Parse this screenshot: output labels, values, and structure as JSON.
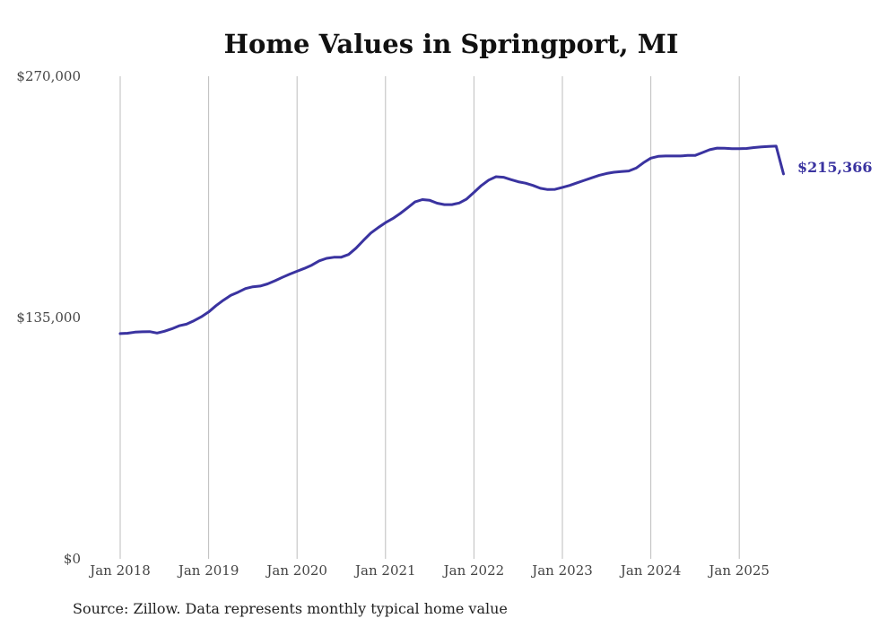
{
  "chart_data": {
    "type": "line",
    "title": "Home Values in Springport, MI",
    "source": "Source: Zillow. Data represents monthly typical home value",
    "xlabel": "",
    "ylabel": "",
    "ylim": [
      0,
      270000
    ],
    "yticks": [
      0,
      135000,
      270000
    ],
    "ytick_labels": [
      "$0",
      "$135,000",
      "$270,000"
    ],
    "xtick_labels": [
      "Jan 2018",
      "Jan 2019",
      "Jan 2020",
      "Jan 2021",
      "Jan 2022",
      "Jan 2023",
      "Jan 2024",
      "Jan 2025"
    ],
    "grid": "vertical",
    "line_color": "#3a33a0",
    "end_label": "$215,366",
    "series": [
      {
        "x": [
          "2018-01",
          "2018-02",
          "2018-03",
          "2018-04",
          "2018-05",
          "2018-06",
          "2018-07",
          "2018-08",
          "2018-09",
          "2018-10",
          "2018-11",
          "2018-12",
          "2019-01",
          "2019-02",
          "2019-03",
          "2019-04",
          "2019-05",
          "2019-06",
          "2019-07",
          "2019-08",
          "2019-09",
          "2019-10",
          "2019-11",
          "2019-12",
          "2020-01",
          "2020-02",
          "2020-03",
          "2020-04",
          "2020-05",
          "2020-06",
          "2020-07",
          "2020-08",
          "2020-09",
          "2020-10",
          "2020-11",
          "2020-12",
          "2021-01",
          "2021-02",
          "2021-03",
          "2021-04",
          "2021-05",
          "2021-06",
          "2021-07",
          "2021-08",
          "2021-09",
          "2021-10",
          "2021-11",
          "2021-12",
          "2022-01",
          "2022-02",
          "2022-03",
          "2022-04",
          "2022-05",
          "2022-06",
          "2022-07",
          "2022-08",
          "2022-09",
          "2022-10",
          "2022-11",
          "2022-12",
          "2023-01",
          "2023-02",
          "2023-03",
          "2023-04",
          "2023-05",
          "2023-06",
          "2023-07",
          "2023-08",
          "2023-09",
          "2023-10",
          "2023-11",
          "2023-12",
          "2024-01",
          "2024-02",
          "2024-03",
          "2024-04",
          "2024-05",
          "2024-06",
          "2024-07",
          "2024-08",
          "2024-09",
          "2024-10",
          "2024-11",
          "2024-12",
          "2025-01",
          "2025-02",
          "2025-03",
          "2025-04",
          "2025-05",
          "2025-06",
          "2025-07"
        ],
        "values": [
          126000,
          126200,
          126800,
          127000,
          127100,
          126300,
          127300,
          128700,
          130400,
          131300,
          133200,
          135400,
          138100,
          141600,
          144700,
          147400,
          149200,
          151200,
          152200,
          152600,
          153800,
          155600,
          157500,
          159300,
          160900,
          162500,
          164300,
          166700,
          168100,
          168700,
          168800,
          170300,
          173800,
          178100,
          182300,
          185300,
          188100,
          190400,
          193200,
          196400,
          199700,
          201000,
          200600,
          199000,
          198200,
          198200,
          199100,
          201300,
          205000,
          208800,
          211900,
          213800,
          213500,
          212200,
          211000,
          210200,
          208900,
          207300,
          206600,
          206700,
          207800,
          208900,
          210400,
          211800,
          213200,
          214600,
          215600,
          216300,
          216700,
          217000,
          218600,
          221600,
          224200,
          225200,
          225400,
          225400,
          225400,
          225700,
          225700,
          227300,
          228900,
          229800,
          229700,
          229500,
          229500,
          229600,
          230100,
          230500,
          230700,
          230900,
          215366
        ]
      }
    ]
  }
}
